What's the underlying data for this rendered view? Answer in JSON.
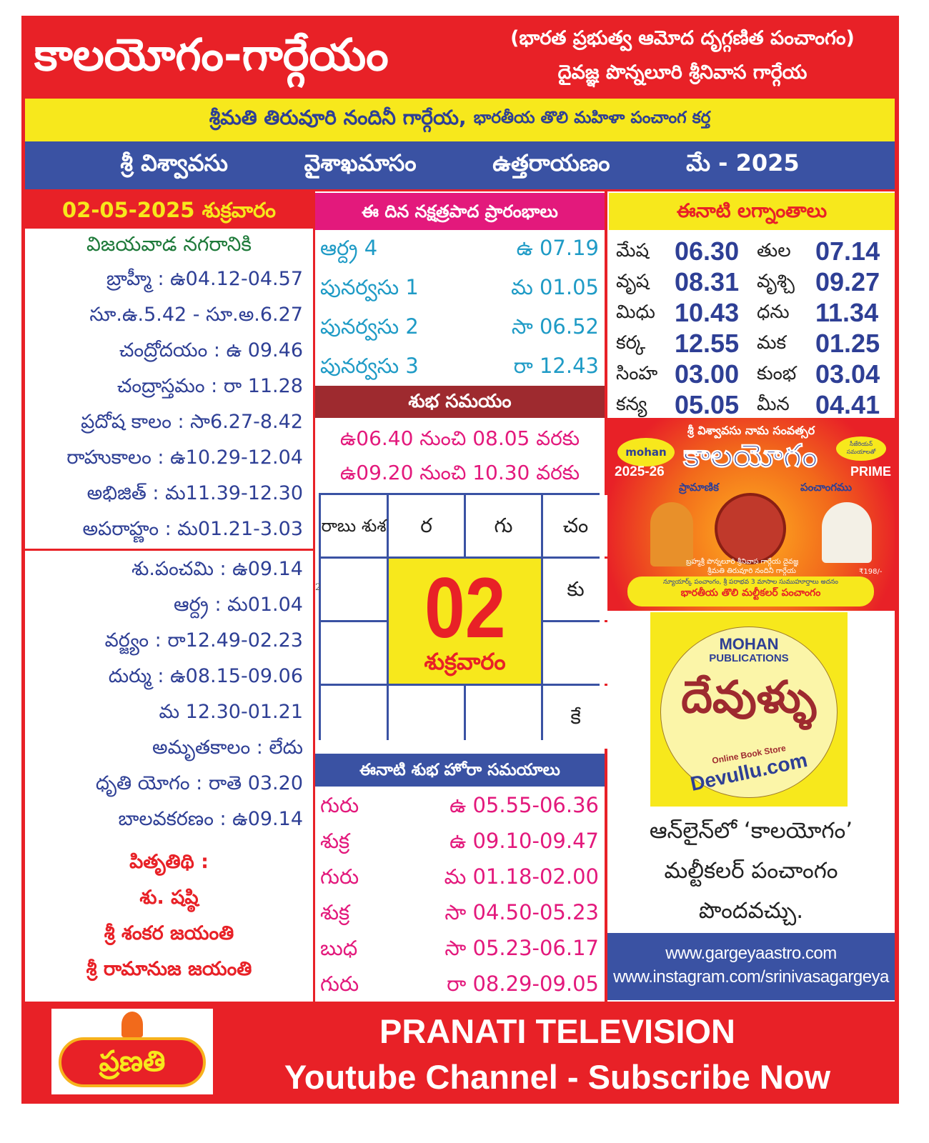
{
  "header": {
    "title": "కాలయోగం-గార్గేయం",
    "subtitle1": "(భారత ప్రభుత్వ ఆమోద దృగ్గణిత పంచాంగం)",
    "subtitle2": "దైవజ్ఞ పొన్నలూరి శ్రీనివాస గార్గేయ"
  },
  "banner": {
    "name": "శ్రీమతి తిరువూరి నందినీ గార్గేయ,",
    "tagline": "భారతీయ తొలి మహిళా పంచాంగ కర్త"
  },
  "strip": [
    "శ్రీ విశ్వావసు",
    "వైశాఖమాసం",
    "ఉత్తరాయణం",
    "మే - 2025"
  ],
  "left": {
    "date_header": "02-05-2025 శుక్రవారం",
    "city": "విజయవాడ నగరానికి",
    "timings": [
      "బ్రాహ్మీ : ఉ04.12-04.57",
      "సూ.ఉ.5.42 - సూ.అ.6.27",
      "చంద్రోదయం : ఉ 09.46",
      "చంద్రాస్తమం : రా 11.28",
      "ప్రదోష కాలం : సా6.27-8.42",
      "రాహుకాలం : ఉ10.29-12.04",
      "అభిజిత్ : మ11.39-12.30",
      "అపరాహ్ణం : మ01.21-3.03"
    ],
    "details": [
      "శు.పంచమి : ఉ09.14",
      "ఆర్ద్ర : మ01.04",
      "వర్జ్యం : రా12.49-02.23",
      "దుర్ము : ఉ08.15-09.06",
      "మ 12.30-01.21",
      "అమృతకాలం : లేదు",
      "ధృతి యోగం : రాతె 03.20",
      "బాలవకరణం : ఉ09.14"
    ],
    "highlights": [
      "పితృతిథి :",
      "శు. షష్ఠి",
      "శ్రీ శంకర జయంతి",
      "శ్రీ రామానుజ జయంతి"
    ]
  },
  "middle": {
    "nakshatra_header": "ఈ దిన నక్షత్రపాద ప్రారంభాలు",
    "nakshatra": [
      {
        "name": "ఆర్ద్ర 4",
        "time": "ఉ 07.19"
      },
      {
        "name": "పునర్వసు 1",
        "time": "మ 01.05"
      },
      {
        "name": "పునర్వసు 2",
        "time": "సా 06.52"
      },
      {
        "name": "పునర్వసు 3",
        "time": "రా 12.43"
      }
    ],
    "shubha_header": "శుభ సమయం",
    "shubha": [
      "ఉ06.40 నుంచి 08.05 వరకు",
      "ఉ09.20 నుంచి 10.30 వరకు"
    ],
    "chart": {
      "c11": "రాబు శుశ",
      "c12": "ర",
      "c13": "గు",
      "c14": "చం",
      "c24": "కు",
      "c44": "కే",
      "day": "02",
      "weekday": "శుక్రవారం",
      "stray": "2"
    },
    "hora_header": "ఈనాటి శుభ హోరా సమయాలు",
    "hora": [
      {
        "planet": "గురు",
        "time": "ఉ 05.55-06.36"
      },
      {
        "planet": "శుక్ర",
        "time": "ఉ 09.10-09.47"
      },
      {
        "planet": "గురు",
        "time": "మ 01.18-02.00"
      },
      {
        "planet": "శుక్ర",
        "time": "సా 04.50-05.23"
      },
      {
        "planet": "బుధ",
        "time": "సా 05.23-06.17"
      },
      {
        "planet": "గురు",
        "time": "రా 08.29-09.05"
      }
    ]
  },
  "right": {
    "lagna_header": "ఈనాటి లగ్నాంతాలు",
    "lagna": [
      [
        "మేష",
        "06.30",
        "తుల",
        "07.14"
      ],
      [
        "వృష",
        "08.31",
        "వృశ్చి",
        "09.27"
      ],
      [
        "మిధు",
        "10.43",
        "ధను",
        "11.34"
      ],
      [
        "కర్క",
        "12.55",
        "మక",
        "01.25"
      ],
      [
        "సింహ",
        "03.00",
        "కుంభ",
        "03.04"
      ],
      [
        "కన్య",
        "05.05",
        "మీన",
        "04.41"
      ]
    ],
    "ad": {
      "top": "శ్రీ విశ్వావసు నామ సంవత్సర",
      "brand": "కాలయోగం",
      "year": "2025-26",
      "prime": "PRIME",
      "sub1": "ప్రామాణిక",
      "sub2": "పంచాంగము",
      "publisher": "mohan",
      "seal": "సీజేరియన్ సమయాలతో",
      "authors1": "బ్రహ్మశ్రీ పొన్నలూరి శ్రీనివాస గార్గేయ దైవజ్ఞ",
      "authors2": "శ్రీమతి తిరువూరి నందినీ గార్గేయ",
      "price": "₹198/-",
      "band1": "న్యూయార్క్ పంచాంగం, శ్రీ పరాభవ 3 మాసాల సుముహూర్తాలు అదనం",
      "band2": "భారతీయ తొలి మల్టీకలర్ పంచాంగం"
    },
    "devullu": {
      "l1": "MOHAN",
      "l2": "PUBLICATIONS",
      "logo": "దేవుళ్ళు",
      "l3": "Online Book Store",
      "l4": "Devullu.com"
    },
    "online": [
      "ఆన్‌లైన్‌లో ‘కాలయోగం’",
      "మల్టీకలర్ పంచాంగం",
      "పొందవచ్చు."
    ],
    "links": [
      "www.gargeyaastro.com",
      "www.instagram.com/srinivasagargeya"
    ]
  },
  "footer": {
    "logo": "ప్రణతి",
    "line1": "PRANATI TELEVISION",
    "line2": "Youtube Channel - Subscribe Now"
  },
  "colors": {
    "red": "#e82127",
    "yellow": "#f7e81c",
    "blue": "#3a52a3",
    "pink": "#e3197c",
    "maroon": "#9e2a2f",
    "cyan": "#1f9bc6"
  }
}
